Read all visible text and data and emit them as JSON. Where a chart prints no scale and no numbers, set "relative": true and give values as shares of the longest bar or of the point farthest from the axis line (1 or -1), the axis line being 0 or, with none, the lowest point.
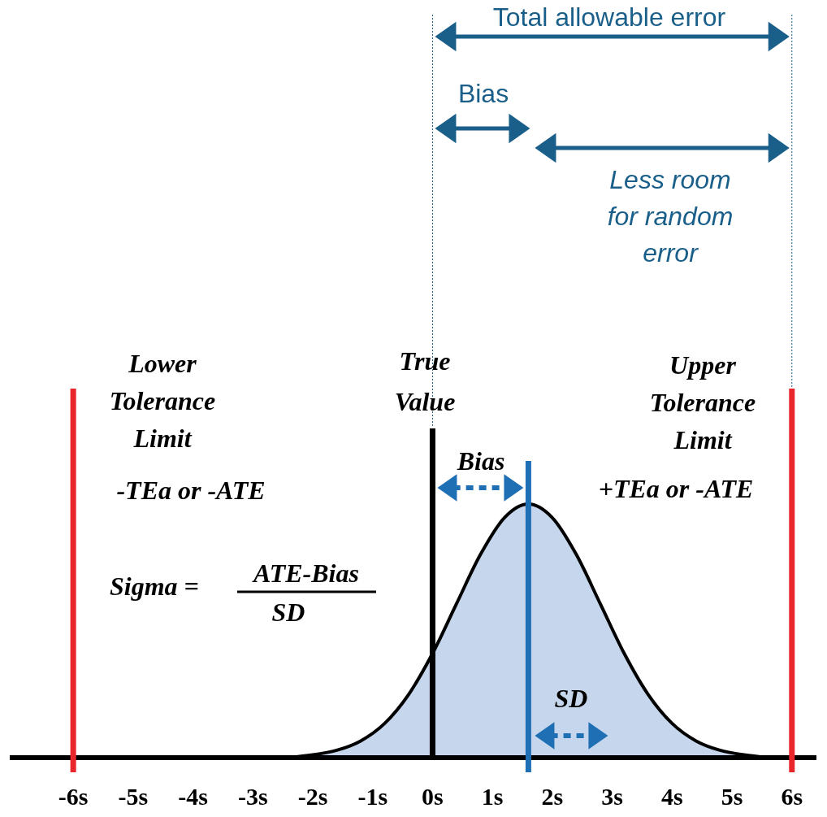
{
  "chart_data": {
    "type": "area",
    "relative": true,
    "xlim": [
      -7.06,
      6.41
    ],
    "xticks": [
      {
        "value": -6,
        "label": "-6s"
      },
      {
        "value": -5,
        "label": "-5s"
      },
      {
        "value": -4,
        "label": "-4s"
      },
      {
        "value": -3,
        "label": "-3s"
      },
      {
        "value": -2,
        "label": "-2s"
      },
      {
        "value": -1,
        "label": "-1s"
      },
      {
        "value": 0,
        "label": "0s"
      },
      {
        "value": 1,
        "label": "1s"
      },
      {
        "value": 2,
        "label": "2s"
      },
      {
        "value": 3,
        "label": "3s"
      },
      {
        "value": 4,
        "label": "4s"
      },
      {
        "value": 5,
        "label": "5s"
      },
      {
        "value": 6,
        "label": "6s"
      }
    ],
    "series": [
      {
        "color": "#c6d6ec",
        "x": [
          -2.4,
          -2.0,
          -1.6,
          -1.2,
          -0.8,
          -0.4,
          0,
          0.4,
          0.8,
          1.2,
          1.6,
          2.0,
          2.4,
          2.8,
          3.2,
          3.6,
          4.0,
          4.4,
          4.8,
          5.2,
          5.6
        ],
        "values": [
          0,
          0.011,
          0.029,
          0.066,
          0.135,
          0.249,
          0.411,
          0.607,
          0.801,
          0.946,
          1,
          0.946,
          0.801,
          0.607,
          0.411,
          0.249,
          0.135,
          0.066,
          0.029,
          0.011,
          0
        ]
      }
    ],
    "ref_lines": [
      {
        "axis": "x",
        "value": -6,
        "color": "#e8262b",
        "line_style": "solid"
      },
      {
        "axis": "x",
        "value": 0,
        "color": "#000000",
        "line_style": "solid"
      },
      {
        "axis": "x",
        "value": 1.6,
        "color": "#1f6fb5",
        "line_style": "solid"
      },
      {
        "axis": "x",
        "value": 6,
        "color": "#e8262b",
        "line_style": "solid"
      }
    ],
    "annotations": [
      "Total allowable error",
      "Bias",
      "Less room for random error",
      "Lower Tolerance Limit",
      "-TEa or -ATE",
      "True Value",
      "Bias",
      "Upper Tolerance Limit",
      "+TEa or -ATE",
      "Sigma =",
      "ATE-Bias",
      "SD",
      "SD"
    ],
    "grid": false
  }
}
